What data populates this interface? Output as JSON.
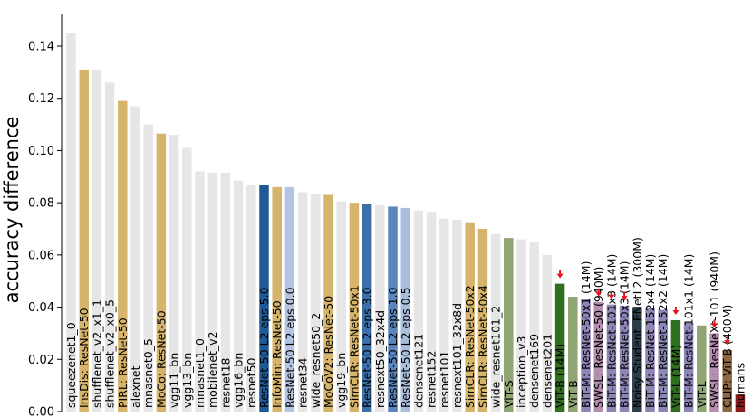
{
  "chart_data": {
    "type": "bar",
    "title": "",
    "xlabel": "",
    "ylabel": "accuracy difference",
    "ylim": [
      0,
      0.15
    ],
    "yticks": [
      "0.00",
      "0.02",
      "0.04",
      "0.06",
      "0.08",
      "0.10",
      "0.12",
      "0.14"
    ],
    "grid": false,
    "legend": "none",
    "colors": {
      "supervised": "#e6e6e6",
      "self_supervised": "#d6b46c",
      "adversarial_dark": "#1f5a96",
      "adversarial_mid": "#5a86bd",
      "adversarial_light": "#b4c4e0",
      "vit": "#8fa574",
      "vit_dark": "#2f6f1e",
      "bit_m": "#8d86b5",
      "swsl": "#b58fb0",
      "noisy_student": "#2c3e4a",
      "clip": "#8e6744",
      "humans": "#8b1a1a",
      "arrow": "#e8111f"
    },
    "bars": [
      {
        "label": "squeezenet1_0",
        "value": 0.145,
        "color": "#e6e6e6",
        "arrow": false
      },
      {
        "label": "InsDis: ResNet-50",
        "value": 0.131,
        "color": "#d6b46c",
        "arrow": false
      },
      {
        "label": "shufflenet_v2_x1_1",
        "value": 0.131,
        "color": "#e6e6e6",
        "arrow": false
      },
      {
        "label": "shufflenet_v2_x0_5",
        "value": 0.126,
        "color": "#e6e6e6",
        "arrow": false
      },
      {
        "label": "PIRL: ResNet-50",
        "value": 0.119,
        "color": "#d6b46c",
        "arrow": false
      },
      {
        "label": "alexnet",
        "value": 0.117,
        "color": "#e6e6e6",
        "arrow": false
      },
      {
        "label": "mnasnet0_5",
        "value": 0.11,
        "color": "#e6e6e6",
        "arrow": false
      },
      {
        "label": "MoCo: ResNet-50",
        "value": 0.1065,
        "color": "#d6b46c",
        "arrow": false
      },
      {
        "label": "vgg11_bn",
        "value": 0.106,
        "color": "#e6e6e6",
        "arrow": false
      },
      {
        "label": "vgg13_bn",
        "value": 0.101,
        "color": "#e6e6e6",
        "arrow": false
      },
      {
        "label": "mnasnet1_0",
        "value": 0.092,
        "color": "#e6e6e6",
        "arrow": false
      },
      {
        "label": "mobilenet_v2",
        "value": 0.0915,
        "color": "#e6e6e6",
        "arrow": false
      },
      {
        "label": "resnet18",
        "value": 0.0915,
        "color": "#e6e6e6",
        "arrow": false
      },
      {
        "label": "vgg16_bn",
        "value": 0.0885,
        "color": "#e6e6e6",
        "arrow": false
      },
      {
        "label": "resnet50",
        "value": 0.087,
        "color": "#e6e6e6",
        "arrow": false
      },
      {
        "label": "ResNet-50 L2 eps 5.0",
        "value": 0.087,
        "color": "#1f5a96",
        "arrow": false
      },
      {
        "label": "InfoMin: ResNet-50",
        "value": 0.086,
        "color": "#d6b46c",
        "arrow": false
      },
      {
        "label": "ResNet-50 L2 eps 0.0",
        "value": 0.086,
        "color": "#b4c4e0",
        "arrow": false
      },
      {
        "label": "resnet34",
        "value": 0.084,
        "color": "#e6e6e6",
        "arrow": false
      },
      {
        "label": "wide_resnet50_2",
        "value": 0.0835,
        "color": "#e6e6e6",
        "arrow": false
      },
      {
        "label": "MoCoV2: ResNet-50",
        "value": 0.083,
        "color": "#d6b46c",
        "arrow": false
      },
      {
        "label": "vgg19_bn",
        "value": 0.0805,
        "color": "#e6e6e6",
        "arrow": false
      },
      {
        "label": "SimCLR: ResNet-50x1",
        "value": 0.08,
        "color": "#d6b46c",
        "arrow": false
      },
      {
        "label": "ResNet-50 L2 eps 3.0",
        "value": 0.0795,
        "color": "#3d6fa8",
        "arrow": false
      },
      {
        "label": "resnext50_32x4d",
        "value": 0.079,
        "color": "#e6e6e6",
        "arrow": false
      },
      {
        "label": "ResNet-50 L2 eps 1.0",
        "value": 0.0785,
        "color": "#5a86bd",
        "arrow": false
      },
      {
        "label": "ResNet-50 L2 eps 0.5",
        "value": 0.078,
        "color": "#a9bedc",
        "arrow": false
      },
      {
        "label": "densenet121",
        "value": 0.077,
        "color": "#e6e6e6",
        "arrow": false
      },
      {
        "label": "resnet152",
        "value": 0.0765,
        "color": "#e6e6e6",
        "arrow": false
      },
      {
        "label": "resnet101",
        "value": 0.074,
        "color": "#e6e6e6",
        "arrow": false
      },
      {
        "label": "resnext101_32x8d",
        "value": 0.0735,
        "color": "#e6e6e6",
        "arrow": false
      },
      {
        "label": "SimCLR: ResNet-50x2",
        "value": 0.0725,
        "color": "#d6b46c",
        "arrow": false
      },
      {
        "label": "SimCLR: ResNet-50x4",
        "value": 0.07,
        "color": "#d6b46c",
        "arrow": false
      },
      {
        "label": "wide_resnet101_2",
        "value": 0.068,
        "color": "#e6e6e6",
        "arrow": false
      },
      {
        "label": "ViT-S",
        "value": 0.0665,
        "color": "#8fa574",
        "arrow": false
      },
      {
        "label": "inception_v3",
        "value": 0.066,
        "color": "#e6e6e6",
        "arrow": false
      },
      {
        "label": "densenet169",
        "value": 0.065,
        "color": "#e6e6e6",
        "arrow": false
      },
      {
        "label": "densenet201",
        "value": 0.06,
        "color": "#e6e6e6",
        "arrow": false
      },
      {
        "label": "ViT-B (14M)",
        "value": 0.049,
        "color": "#2f6f1e",
        "arrow": true
      },
      {
        "label": "ViT-B",
        "value": 0.044,
        "color": "#8fa574",
        "arrow": false
      },
      {
        "label": "BiT-M: ResNet-50x1 (14M)",
        "value": 0.043,
        "color": "#8d86b5",
        "arrow": false
      },
      {
        "label": "SWSL: ResNet-50 (940M)",
        "value": 0.042,
        "color": "#b58fb0",
        "arrow": true
      },
      {
        "label": "BiT-M: ResNet-101x3 (14M)",
        "value": 0.041,
        "color": "#8d86b5",
        "arrow": true
      },
      {
        "label": "BiT-M: ResNet-50x3 (14M)",
        "value": 0.0405,
        "color": "#8d86b5",
        "arrow": true
      },
      {
        "label": "Noisy Student: ENetL2 (300M)",
        "value": 0.04,
        "color": "#2c3e4a",
        "arrow": false
      },
      {
        "label": "BiT-M: ResNet-152x4 (14M)",
        "value": 0.0395,
        "color": "#8d86b5",
        "arrow": false
      },
      {
        "label": "BiT-M: ResNet-152x2 (14M)",
        "value": 0.039,
        "color": "#8d86b5",
        "arrow": false
      },
      {
        "label": "ViT-L (14M)",
        "value": 0.035,
        "color": "#2f6f1e",
        "arrow": true
      },
      {
        "label": "BiT-M: ResNet-101x1 (14M)",
        "value": 0.034,
        "color": "#8d86b5",
        "arrow": false
      },
      {
        "label": "ViT-L",
        "value": 0.033,
        "color": "#8fa574",
        "arrow": false
      },
      {
        "label": "SWSL: ResNeXt-101 (940M)",
        "value": 0.03,
        "color": "#b58fb0",
        "arrow": true
      },
      {
        "label": "CLIP: ViT-B (400M)",
        "value": 0.0235,
        "color": "#8e6744",
        "arrow": true
      },
      {
        "label": "humans",
        "value": 0.0065,
        "color": "#8b1a1a",
        "arrow": false
      }
    ]
  }
}
